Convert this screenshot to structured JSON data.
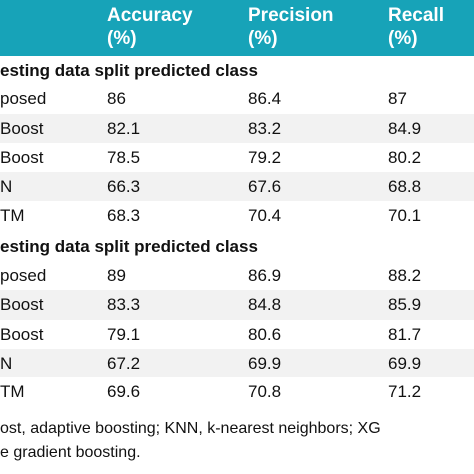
{
  "table": {
    "columns": [
      {
        "line1": "Accuracy",
        "line2": "(%)"
      },
      {
        "line1": "Precision",
        "line2": "(%)"
      },
      {
        "line1": "Recall",
        "line2": "(%)"
      }
    ],
    "sections": [
      {
        "title": "esting data split predicted class",
        "rows": [
          {
            "label": "posed",
            "accuracy": "86",
            "precision": "86.4",
            "recall": "87"
          },
          {
            "label": "Boost",
            "accuracy": "82.1",
            "precision": "83.2",
            "recall": "84.9"
          },
          {
            "label": "Boost",
            "accuracy": "78.5",
            "precision": "79.2",
            "recall": "80.2"
          },
          {
            "label": "N",
            "accuracy": "66.3",
            "precision": "67.6",
            "recall": "68.8"
          },
          {
            "label": "TM",
            "accuracy": "68.3",
            "precision": "70.4",
            "recall": "70.1"
          }
        ]
      },
      {
        "title": "esting data split predicted class",
        "rows": [
          {
            "label": "posed",
            "accuracy": "89",
            "precision": "86.9",
            "recall": "88.2"
          },
          {
            "label": "Boost",
            "accuracy": "83.3",
            "precision": "84.8",
            "recall": "85.9"
          },
          {
            "label": "Boost",
            "accuracy": "79.1",
            "precision": "80.6",
            "recall": "81.7"
          },
          {
            "label": "N",
            "accuracy": "67.2",
            "precision": "69.9",
            "recall": "69.9"
          },
          {
            "label": "TM",
            "accuracy": "69.6",
            "precision": "70.8",
            "recall": "71.2"
          }
        ]
      }
    ]
  },
  "footnote": {
    "line1": "ost, adaptive boosting; KNN, k-nearest neighbors; XG",
    "line2": "e gradient boosting."
  },
  "colors": {
    "header_bg": "#17a3b8",
    "header_text": "#ffffff",
    "row_alt": "#f2f2f2"
  }
}
